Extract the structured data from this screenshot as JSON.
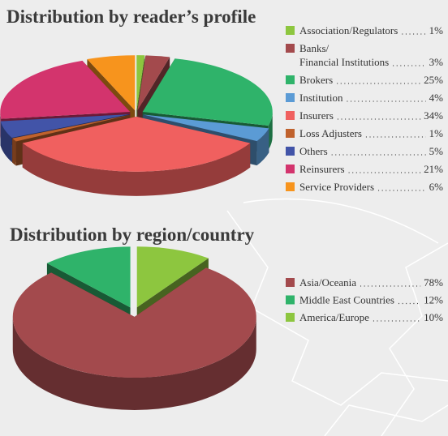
{
  "chart_data": [
    {
      "type": "pie",
      "title": "Distribution by reader’s profile",
      "categories": [
        "Association/Regulators",
        "Banks/\nFinancial Institutions",
        "Brokers",
        "Institution",
        "Insurers",
        "Loss Adjusters",
        "Others",
        "Reinsurers",
        "Service Providers"
      ],
      "values": [
        1,
        3,
        25,
        4,
        34,
        1,
        5,
        21,
        6
      ],
      "value_labels": [
        "1%",
        "3%",
        "25%",
        "4%",
        "34%",
        "1%",
        "5%",
        "21%",
        "6%"
      ],
      "colors": [
        "#8dc63f",
        "#a34a4d",
        "#2fb36a",
        "#5b9bd5",
        "#f0605f",
        "#c0622d",
        "#4254a8",
        "#d3346d",
        "#f7941d"
      ]
    },
    {
      "type": "pie",
      "title": "Distribution by region/country",
      "categories": [
        "Asia/Oceania",
        "Middle East Countries",
        "America/Europe"
      ],
      "values": [
        78,
        12,
        10
      ],
      "value_labels": [
        "78%",
        "12%",
        "10%"
      ],
      "colors": [
        "#a34a4d",
        "#2fb36a",
        "#8dc63f"
      ]
    }
  ]
}
